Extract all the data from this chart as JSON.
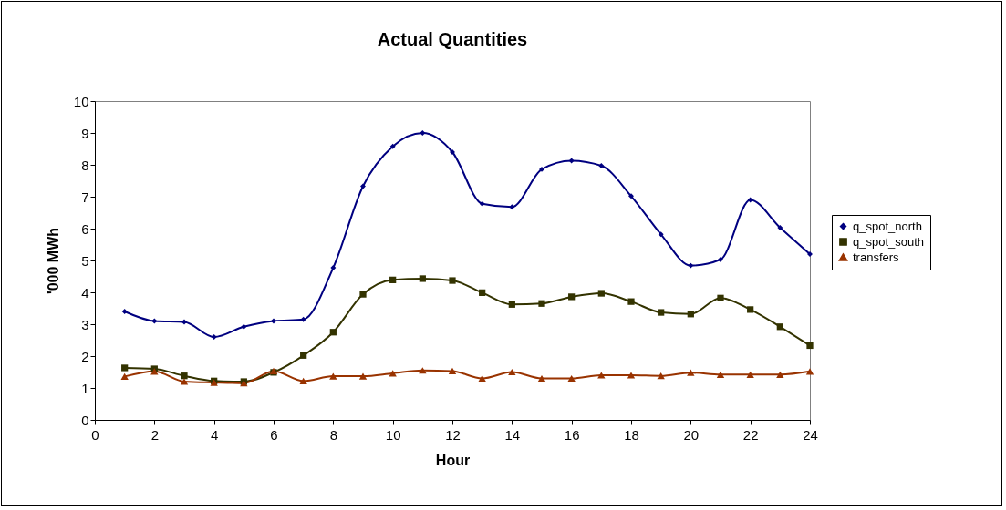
{
  "chart_data": {
    "type": "line",
    "title": "Actual  Quantities",
    "xlabel": "Hour",
    "ylabel": "'000 MWh",
    "x": [
      1,
      2,
      3,
      4,
      5,
      6,
      7,
      8,
      9,
      10,
      11,
      12,
      13,
      14,
      15,
      16,
      17,
      18,
      19,
      20,
      21,
      22,
      23,
      24
    ],
    "series": [
      {
        "name": "q_spot_north",
        "color": "#000080",
        "marker": "diamond",
        "values": [
          3.4,
          3.1,
          3.07,
          2.6,
          2.92,
          3.1,
          3.15,
          4.77,
          7.33,
          8.58,
          9.0,
          8.4,
          6.78,
          6.68,
          7.86,
          8.13,
          7.97,
          7.02,
          5.82,
          4.84,
          5.03,
          6.9,
          6.03,
          5.2
        ]
      },
      {
        "name": "q_spot_south",
        "color": "#333300",
        "marker": "square",
        "values": [
          1.63,
          1.6,
          1.38,
          1.22,
          1.2,
          1.49,
          2.02,
          2.75,
          3.94,
          4.39,
          4.43,
          4.37,
          3.99,
          3.62,
          3.65,
          3.86,
          3.97,
          3.71,
          3.37,
          3.32,
          3.82,
          3.46,
          2.92,
          2.33
        ]
      },
      {
        "name": "transfers",
        "color": "#993300",
        "marker": "triangle",
        "values": [
          1.36,
          1.52,
          1.2,
          1.17,
          1.15,
          1.53,
          1.22,
          1.37,
          1.37,
          1.46,
          1.55,
          1.53,
          1.3,
          1.5,
          1.3,
          1.3,
          1.4,
          1.4,
          1.38,
          1.48,
          1.42,
          1.42,
          1.42,
          1.52
        ]
      }
    ],
    "xlim": [
      0,
      24
    ],
    "xticks": [
      0,
      2,
      4,
      6,
      8,
      10,
      12,
      14,
      16,
      18,
      20,
      22,
      24
    ],
    "ylim": [
      0,
      10
    ],
    "yticks": [
      0,
      1,
      2,
      3,
      4,
      5,
      6,
      7,
      8,
      9,
      10
    ],
    "grid": false,
    "legend": "right",
    "line_style": "solid"
  }
}
